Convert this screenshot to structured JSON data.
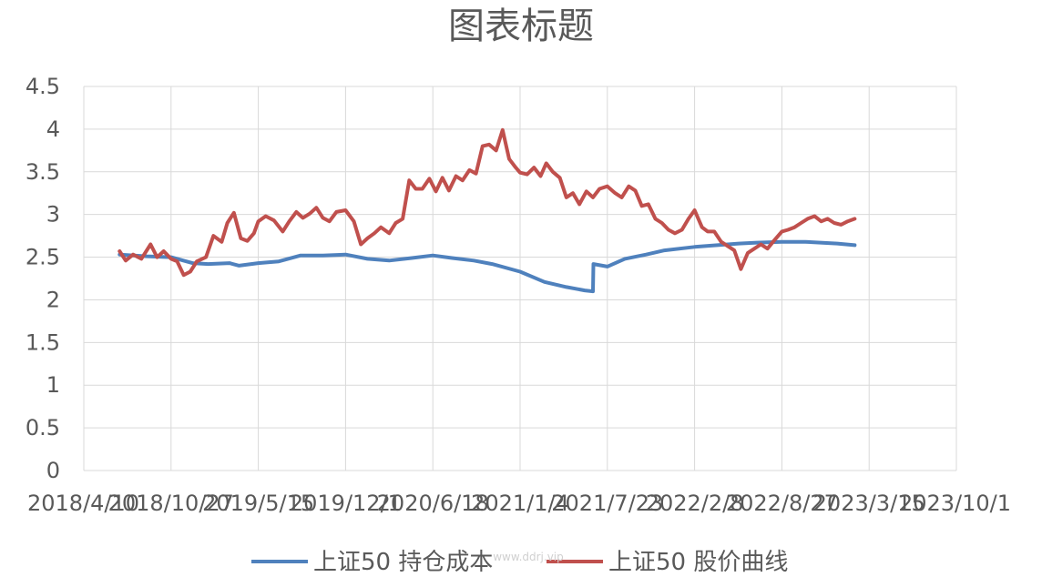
{
  "chart_data": {
    "type": "line",
    "title": "图表标题",
    "xlabel": "",
    "ylabel": "",
    "ylim": [
      0,
      4.5
    ],
    "y_ticks": [
      "0",
      "0.5",
      "1",
      "1.5",
      "2",
      "2.5",
      "3",
      "3.5",
      "4",
      "4.5"
    ],
    "x_ticks": [
      "2018/4/10",
      "2018/10/27",
      "2019/5/15",
      "2019/12/1",
      "2020/6/18",
      "2021/1/4",
      "2021/7/23",
      "2022/2/8",
      "2022/8/27",
      "2023/3/15",
      "2023/10/1"
    ],
    "grid": true,
    "legend_position": "bottom",
    "series": [
      {
        "name": "上证50 持仓成本",
        "color": "#4F81BD",
        "x": [
          "2018/7/1",
          "2018/9/1",
          "2018/10/27",
          "2018/12/15",
          "2019/1/20",
          "2019/3/10",
          "2019/4/1",
          "2019/5/15",
          "2019/7/1",
          "2019/8/20",
          "2019/10/10",
          "2019/12/1",
          "2020/1/20",
          "2020/3/10",
          "2020/5/1",
          "2020/6/18",
          "2020/8/1",
          "2020/9/20",
          "2020/11/1",
          "2021/1/4",
          "2021/3/1",
          "2021/4/20",
          "2021/6/1",
          "2021/6/20",
          "2021/6/21",
          "2021/7/23",
          "2021/9/1",
          "2021/10/20",
          "2021/12/1",
          "2022/2/8",
          "2022/4/1",
          "2022/5/20",
          "2022/7/1",
          "2022/8/27",
          "2022/10/20",
          "2023/1/1",
          "2023/2/10"
        ],
        "y": [
          2.53,
          2.51,
          2.5,
          2.43,
          2.42,
          2.43,
          2.4,
          2.43,
          2.45,
          2.52,
          2.52,
          2.53,
          2.48,
          2.46,
          2.49,
          2.52,
          2.49,
          2.46,
          2.42,
          2.33,
          2.21,
          2.15,
          2.11,
          2.1,
          2.42,
          2.39,
          2.48,
          2.53,
          2.58,
          2.62,
          2.64,
          2.66,
          2.67,
          2.68,
          2.68,
          2.66,
          2.64
        ]
      },
      {
        "name": "上证50 股价曲线",
        "color": "#C0504D",
        "x": [
          "2018/7/1",
          "2018/7/15",
          "2018/8/1",
          "2018/8/20",
          "2018/9/10",
          "2018/9/25",
          "2018/10/10",
          "2018/10/27",
          "2018/11/10",
          "2018/11/25",
          "2018/12/10",
          "2018/12/25",
          "2019/1/15",
          "2019/2/1",
          "2019/2/20",
          "2019/3/5",
          "2019/3/20",
          "2019/4/5",
          "2019/4/20",
          "2019/5/5",
          "2019/5/15",
          "2019/6/1",
          "2019/6/20",
          "2019/7/10",
          "2019/7/25",
          "2019/8/10",
          "2019/8/25",
          "2019/9/10",
          "2019/9/25",
          "2019/10/10",
          "2019/10/25",
          "2019/11/10",
          "2019/12/1",
          "2019/12/20",
          "2020/1/5",
          "2020/1/20",
          "2020/2/5",
          "2020/2/20",
          "2020/3/10",
          "2020/3/25",
          "2020/4/10",
          "2020/4/25",
          "2020/5/10",
          "2020/5/25",
          "2020/6/10",
          "2020/6/25",
          "2020/7/10",
          "2020/7/25",
          "2020/8/10",
          "2020/8/25",
          "2020/9/10",
          "2020/9/25",
          "2020/10/10",
          "2020/10/25",
          "2020/11/10",
          "2020/11/25",
          "2020/12/10",
          "2020/12/25",
          "2021/1/4",
          "2021/1/20",
          "2021/2/5",
          "2021/2/20",
          "2021/3/5",
          "2021/3/20",
          "2021/4/5",
          "2021/4/20",
          "2021/5/5",
          "2021/5/20",
          "2021/6/5",
          "2021/6/20",
          "2021/7/5",
          "2021/7/23",
          "2021/8/10",
          "2021/8/25",
          "2021/9/10",
          "2021/9/25",
          "2021/10/10",
          "2021/10/25",
          "2021/11/10",
          "2021/11/25",
          "2021/12/10",
          "2021/12/25",
          "2022/1/10",
          "2022/1/25",
          "2022/2/8",
          "2022/2/25",
          "2022/3/10",
          "2022/3/25",
          "2022/4/10",
          "2022/4/25",
          "2022/5/10",
          "2022/5/25",
          "2022/6/10",
          "2022/6/25",
          "2022/7/10",
          "2022/7/25",
          "2022/8/10",
          "2022/8/27",
          "2022/9/10",
          "2022/9/25",
          "2022/10/10",
          "2022/10/25",
          "2022/11/10",
          "2022/11/25",
          "2022/12/10",
          "2022/12/25",
          "2023/1/10",
          "2023/1/25",
          "2023/2/10"
        ],
        "y": [
          2.57,
          2.46,
          2.53,
          2.48,
          2.65,
          2.5,
          2.57,
          2.48,
          2.45,
          2.29,
          2.33,
          2.45,
          2.5,
          2.75,
          2.68,
          2.9,
          3.02,
          2.72,
          2.69,
          2.78,
          2.92,
          2.98,
          2.93,
          2.8,
          2.92,
          3.03,
          2.96,
          3.01,
          3.08,
          2.96,
          2.92,
          3.03,
          3.05,
          2.92,
          2.65,
          2.72,
          2.78,
          2.85,
          2.78,
          2.9,
          2.95,
          3.4,
          3.3,
          3.3,
          3.42,
          3.27,
          3.43,
          3.28,
          3.45,
          3.4,
          3.52,
          3.48,
          3.8,
          3.82,
          3.75,
          3.99,
          3.65,
          3.55,
          3.49,
          3.47,
          3.55,
          3.45,
          3.6,
          3.5,
          3.43,
          3.2,
          3.25,
          3.12,
          3.27,
          3.2,
          3.3,
          3.33,
          3.25,
          3.2,
          3.33,
          3.28,
          3.1,
          3.12,
          2.95,
          2.9,
          2.82,
          2.78,
          2.82,
          2.95,
          3.05,
          2.85,
          2.8,
          2.8,
          2.68,
          2.63,
          2.58,
          2.36,
          2.55,
          2.6,
          2.65,
          2.6,
          2.7,
          2.8,
          2.82,
          2.85,
          2.9,
          2.95,
          2.98,
          2.92,
          2.95,
          2.9,
          2.88,
          2.92,
          2.95
        ]
      }
    ],
    "watermark": "www.ddrj.vip"
  }
}
